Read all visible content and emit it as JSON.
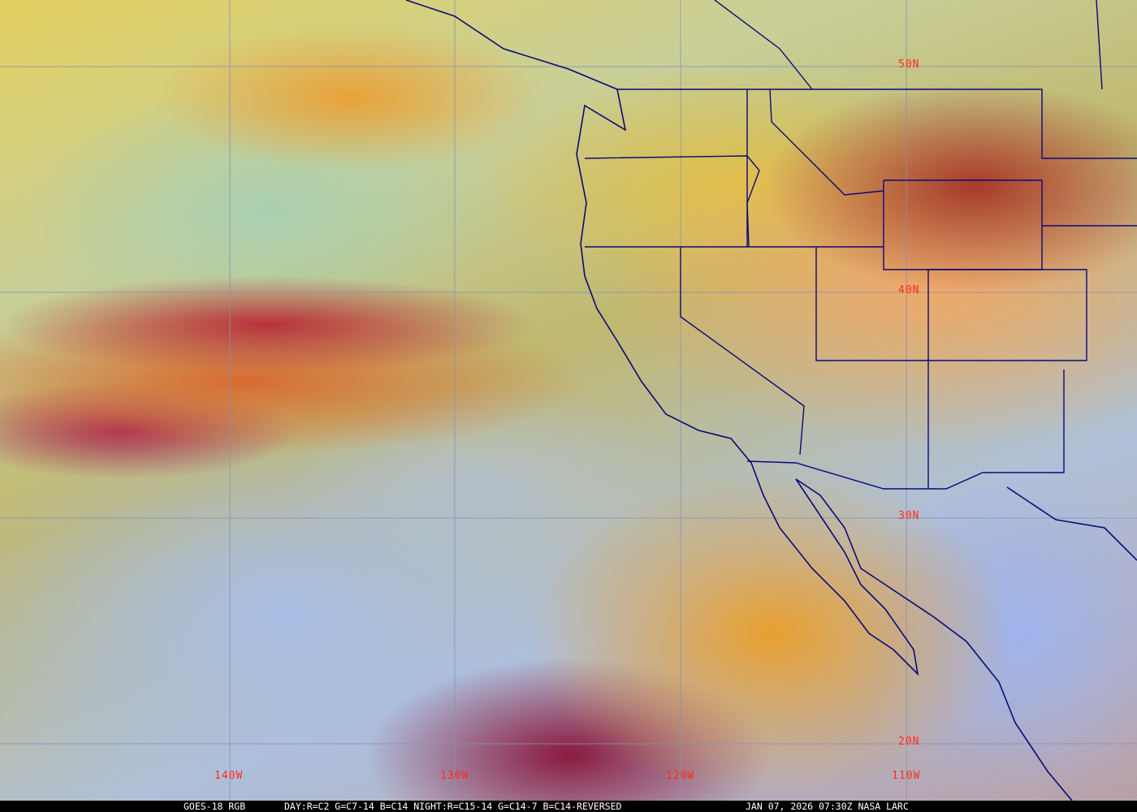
{
  "map": {
    "latitude_labels": [
      "50N",
      "40N",
      "30N",
      "20N"
    ],
    "longitude_labels": [
      "140W",
      "130W",
      "120W",
      "110W"
    ],
    "grid_color": "#8890b8",
    "border_color": "#0a0a78",
    "label_color": "#ff2a1a"
  },
  "caption": {
    "satellite": "GOES-18 RGB",
    "recipe": "DAY:R=C2 G=C7-14 B=C14 NIGHT:R=C15-14 G=C14-7 B=C14-REVERSED",
    "timestamp": "JAN 07, 2026 07:30Z NASA LARC"
  }
}
